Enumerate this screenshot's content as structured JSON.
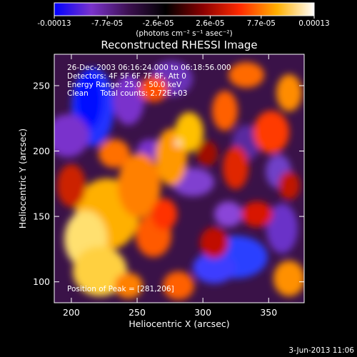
{
  "chart_data": {
    "type": "heatmap",
    "title": "Reconstructed RHESSI Image",
    "xlabel": "Heliocentric X (arcsec)",
    "ylabel": "Heliocentric Y (arcsec)",
    "xlim": [
      187,
      377
    ],
    "ylim": [
      84,
      274
    ],
    "x_ticks": [
      200,
      250,
      300,
      350
    ],
    "y_ticks": [
      100,
      150,
      200,
      250
    ],
    "colorbar": {
      "range": [
        -0.00013,
        0.00013
      ],
      "tick_labels": [
        "-0.00013",
        "-7.7e-05",
        "-2.6e-05",
        "2.6e-05",
        "7.7e-05",
        "0.00013"
      ],
      "unit_label": "(photons cm⁻² s⁻¹ asec⁻²)",
      "colors": [
        "#0000ff",
        "#7a33cc",
        "#3c1050",
        "#000000",
        "#8a0000",
        "#ff2a00",
        "#ffb000",
        "#ffffff"
      ]
    },
    "annotations": [
      "26-Dec-2003 06:16:24.000 to 06:18:56.000",
      "Detectors: 4F 5F 6F 7F 8F, Att 0",
      "Energy Range: 25.0 - 50.0 keV",
      "Clean     Total counts: 2.72E+03"
    ],
    "peak_label": "Position of Peak = [281,206]",
    "peak": [
      281,
      206
    ],
    "grid": false
  },
  "footer": {
    "timestamp": "3-Jun-2013 11:06"
  }
}
